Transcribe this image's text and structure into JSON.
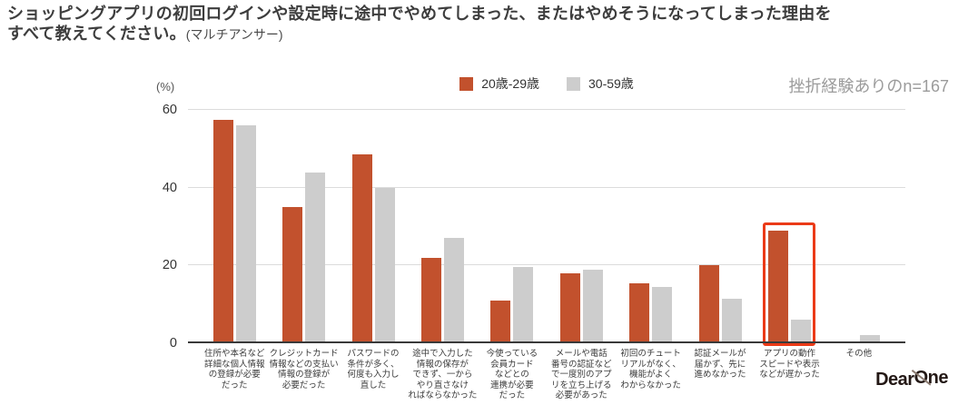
{
  "title": {
    "line1": "ショッピングアプリの初回ログインや設定時に途中でやめてしまった、またはやめそうになってしまった理由を",
    "line2": "すべて教えてください。",
    "note": "(マルチアンサー)"
  },
  "chart": {
    "unit_label": "(%)",
    "sample_note": "挫折経験ありのn=167",
    "legend": [
      {
        "label": "20歳-29歳",
        "color": "#c2512d"
      },
      {
        "label": "30-59歳",
        "color": "#cdcdcd"
      }
    ]
  },
  "chart_data": {
    "type": "bar",
    "title": "ショッピングアプリの初回ログインや設定時に途中でやめてしまった、またはやめそうになってしまった理由をすべて教えてください。(マルチアンサー)",
    "ylabel": "(%)",
    "ylim": [
      0,
      60
    ],
    "yticks": [
      0,
      20,
      40,
      60
    ],
    "grid": true,
    "legend_position": "top-center",
    "sample_note": "挫折経験ありのn=167",
    "categories": [
      "住所や本名など詳細な個人情報の登録が必要だった",
      "クレジットカード情報などの支払い情報の登録が必要だった",
      "パスワードの条件が多く、何度も入力し直した",
      "途中で入力した情報の保存ができず、一からやり直さなければならなかった",
      "今使っている会員カードなどとの連携が必要だった",
      "メールや電話番号の認証などで一度別のアプリを立ち上げる必要があった",
      "初回のチュートリアルがなく、機能がよくわからなかった",
      "認証メールが届かず、先に進めなかった",
      "アプリの動作スピードや表示などが遅かった",
      "その他"
    ],
    "category_label_lines": [
      [
        "住所や本名など",
        "詳細な個人情報",
        "の登録が必要",
        "だった"
      ],
      [
        "クレジットカード",
        "情報などの支払い",
        "情報の登録が",
        "必要だった"
      ],
      [
        "パスワードの",
        "条件が多く、",
        "何度も入力し",
        "直した"
      ],
      [
        "途中で入力した",
        "情報の保存が",
        "できず、一から",
        "やり直さなけ",
        "ればならなかった"
      ],
      [
        "今使っている",
        "会員カード",
        "などとの",
        "連携が必要",
        "だった"
      ],
      [
        "メールや電話",
        "番号の認証など",
        "で一度別のアプ",
        "リを立ち上げる",
        "必要があった"
      ],
      [
        "初回のチュート",
        "リアルがなく、",
        "機能がよく",
        "わからなかった"
      ],
      [
        "認証メールが",
        "届かず、先に",
        "進めなかった"
      ],
      [
        "アプリの動作",
        "スピードや表示",
        "などが遅かった"
      ],
      [
        "その他"
      ]
    ],
    "series": [
      {
        "name": "20歳-29歳",
        "color": "#c2512d",
        "values": [
          57.5,
          35,
          48.5,
          22,
          11,
          18,
          15.5,
          20,
          29,
          0
        ]
      },
      {
        "name": "30-59歳",
        "color": "#cdcdcd",
        "values": [
          56,
          44,
          40,
          27,
          19.5,
          19,
          14.5,
          11.5,
          6,
          2
        ]
      }
    ],
    "highlight_index": 8,
    "highlight_color": "#eb3a17"
  },
  "footer": {
    "logo_part1": "Dear",
    "logo_part2": "One"
  }
}
